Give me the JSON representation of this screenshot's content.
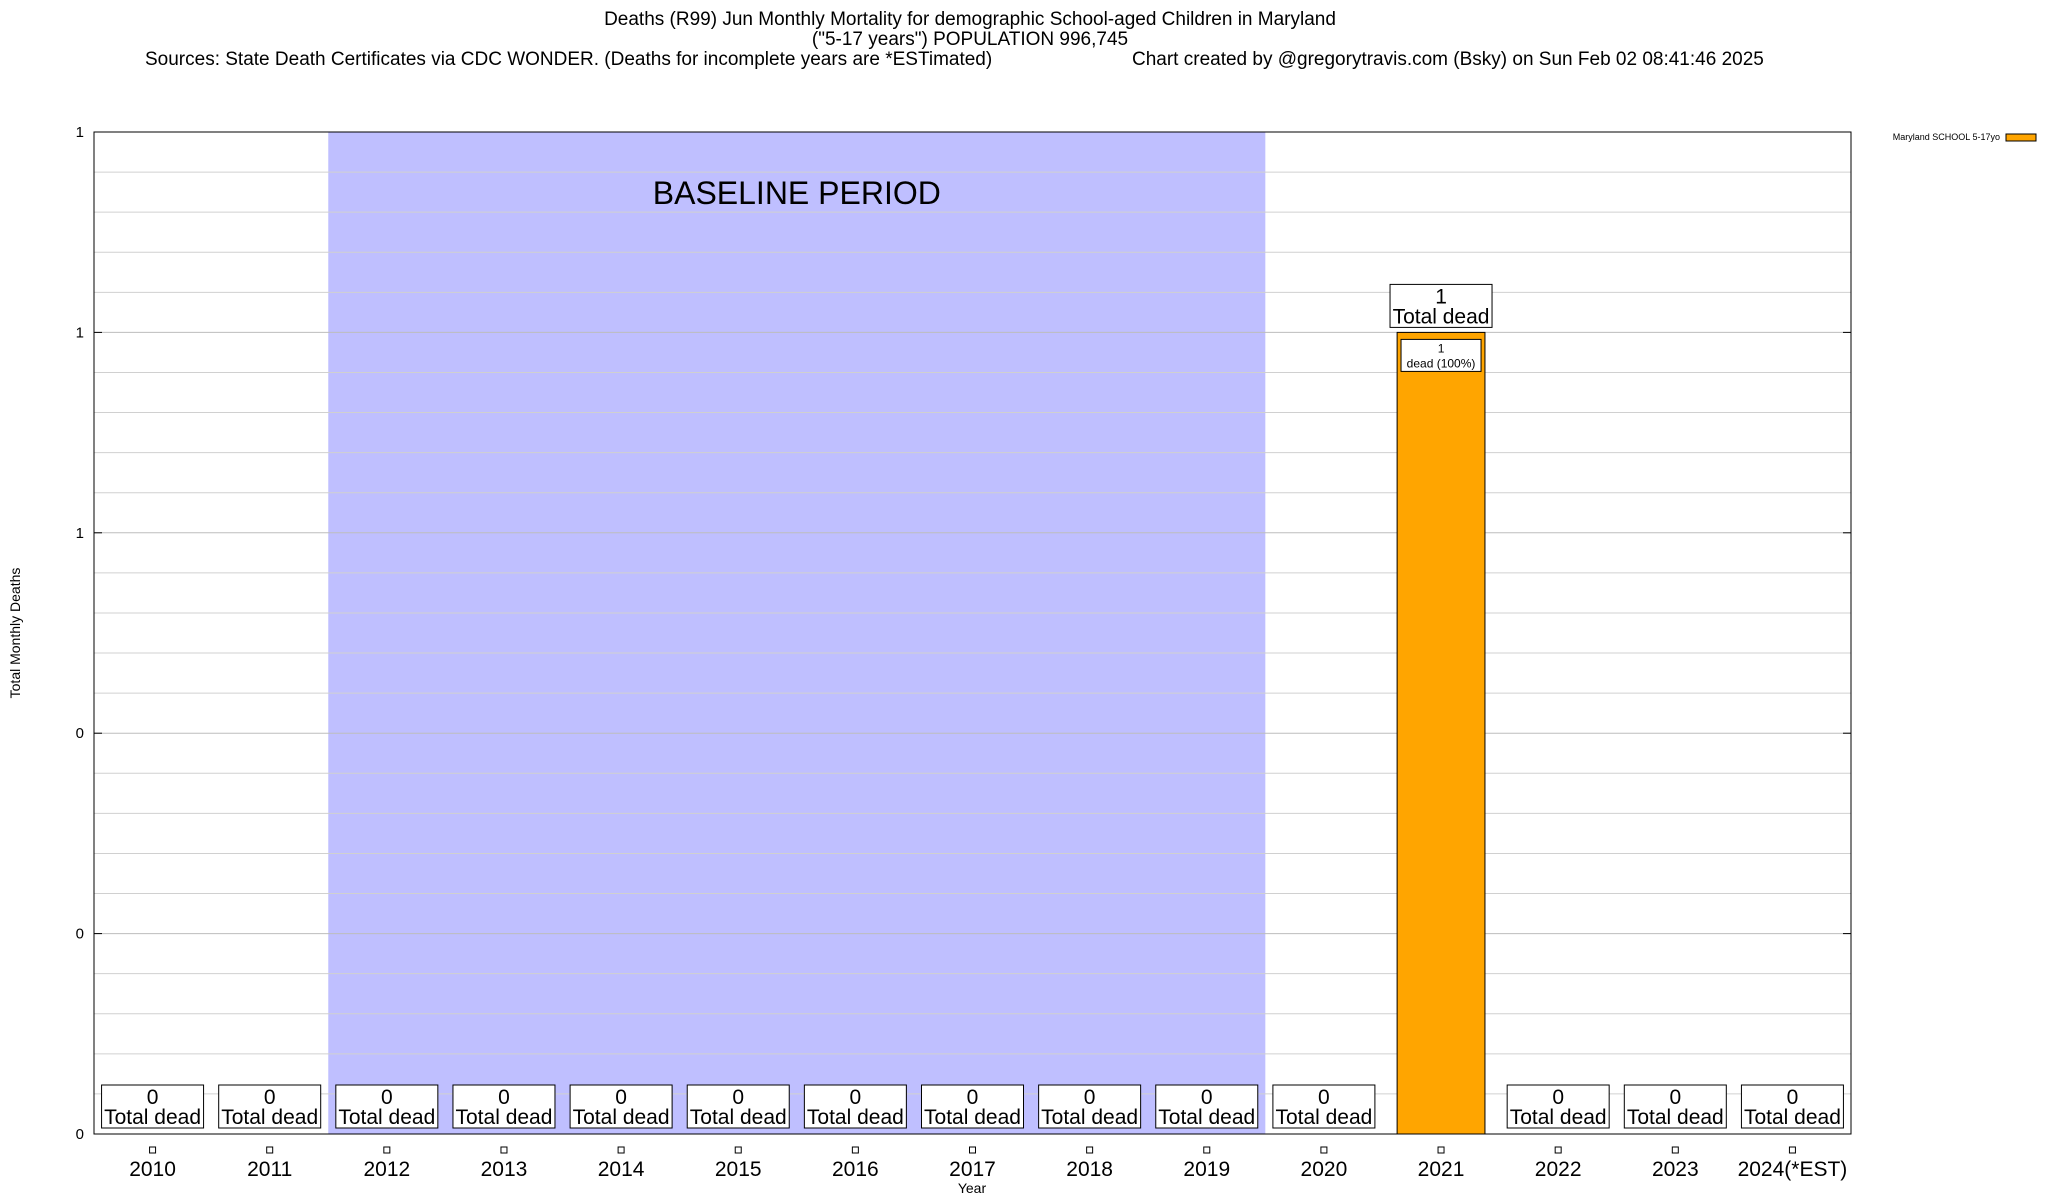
{
  "chart_data": {
    "type": "bar",
    "title_lines": [
      "Deaths (R99) Jun Monthly Mortality for demographic School-aged Children in Maryland",
      "(\"5-17 years\") POPULATION 996,745"
    ],
    "sources": "Sources: State Death Certificates via CDC WONDER. (Deaths for incomplete years are *ESTimated)",
    "credit": "Chart created by @gregorytravis.com (Bsky) on Sun Feb 02 08:41:46 2025",
    "xlabel": "Year",
    "ylabel": "Total Monthly Deaths",
    "ylim": [
      0,
      1.25
    ],
    "y_ticks": [
      {
        "value": 0,
        "label": "0"
      },
      {
        "value": 0.25,
        "label": "0"
      },
      {
        "value": 0.5,
        "label": "0"
      },
      {
        "value": 0.75,
        "label": "1"
      },
      {
        "value": 1.0,
        "label": "1"
      },
      {
        "value": 1.25,
        "label": "1"
      }
    ],
    "grid": true,
    "categories": [
      "2010",
      "2011",
      "2012",
      "2013",
      "2014",
      "2015",
      "2016",
      "2017",
      "2018",
      "2019",
      "2020",
      "2021",
      "2022",
      "2023",
      "2024(*EST)"
    ],
    "series": [
      {
        "name": "Maryland SCHOOL 5-17yo",
        "color": "#ffa500",
        "values": [
          0,
          0,
          0,
          0,
          0,
          0,
          0,
          0,
          0,
          0,
          0,
          1,
          0,
          0,
          0
        ]
      }
    ],
    "total_labels": [
      "0",
      "0",
      "0",
      "0",
      "0",
      "0",
      "0",
      "0",
      "0",
      "0",
      "0",
      "1",
      "0",
      "0",
      "0"
    ],
    "total_suffix": "Total dead",
    "segment_label": {
      "index": 11,
      "count": "1",
      "text": "dead (100%)"
    },
    "baseline": {
      "label": "BASELINE PERIOD",
      "from": "2012",
      "to": "2019",
      "color": "#bfbfff"
    },
    "legend_position": "top-right"
  }
}
